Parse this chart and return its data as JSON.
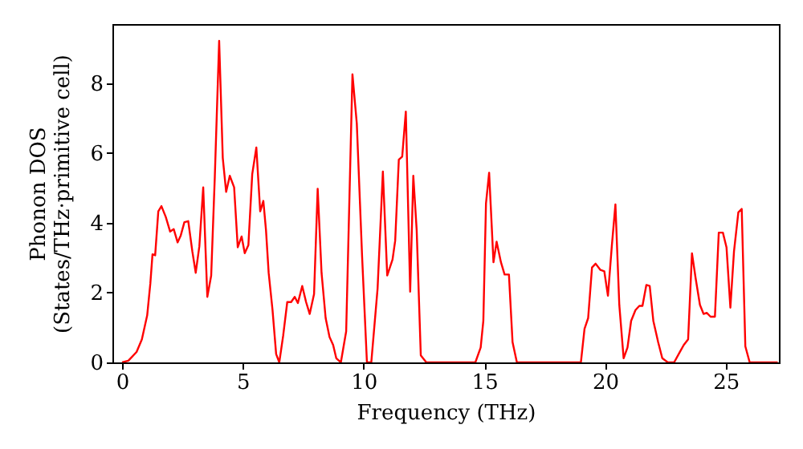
{
  "chart_data": {
    "type": "line",
    "xlabel": "Frequency (THz)",
    "ylabel": "Phonon DOS\n(States/THz·primitive cell)",
    "x": [
      0,
      0.26,
      0.6,
      0.82,
      1.04,
      1.17,
      1.26,
      1.37,
      1.5,
      1.63,
      1.81,
      1.99,
      2.14,
      2.3,
      2.43,
      2.58,
      2.74,
      2.91,
      3.05,
      3.2,
      3.36,
      3.53,
      3.69,
      3.84,
      4.02,
      4.17,
      4.31,
      4.46,
      4.64,
      4.79,
      4.95,
      5.08,
      5.23,
      5.39,
      5.56,
      5.72,
      5.85,
      5.96,
      6.07,
      6.23,
      6.38,
      6.51,
      6.67,
      6.84,
      7.0,
      7.15,
      7.28,
      7.46,
      7.62,
      7.77,
      7.95,
      8.1,
      8.26,
      8.43,
      8.59,
      8.74,
      8.87,
      9.06,
      9.28,
      9.54,
      9.72,
      9.94,
      10.14,
      10.32,
      10.58,
      10.8,
      10.98,
      11.2,
      11.31,
      11.46,
      11.6,
      11.75,
      11.93,
      12.06,
      12.2,
      12.37,
      12.6,
      14.63,
      14.85,
      14.96,
      15.07,
      15.2,
      15.38,
      15.51,
      15.69,
      15.84,
      16.02,
      16.17,
      16.35,
      19.0,
      19.15,
      19.3,
      19.46,
      19.61,
      19.81,
      19.97,
      20.12,
      20.28,
      20.43,
      20.59,
      20.77,
      20.93,
      21.08,
      21.26,
      21.42,
      21.55,
      21.71,
      21.85,
      22.0,
      22.2,
      22.37,
      22.6,
      22.86,
      23.1,
      23.26,
      23.44,
      23.6,
      23.75,
      23.93,
      24.08,
      24.21,
      24.37,
      24.55,
      24.71,
      24.88,
      25.03,
      25.19,
      25.34,
      25.52,
      25.66,
      25.81,
      25.99,
      27.15
    ],
    "series": [
      {
        "color": "#ff0000",
        "values": [
          0,
          0.05,
          0.3,
          0.66,
          1.35,
          2.26,
          3.1,
          3.07,
          4.33,
          4.48,
          4.17,
          3.75,
          3.82,
          3.44,
          3.64,
          4.02,
          4.05,
          3.18,
          2.57,
          3.33,
          5.02,
          1.88,
          2.49,
          5.32,
          9.22,
          5.86,
          4.89,
          5.35,
          5.02,
          3.3,
          3.61,
          3.13,
          3.36,
          5.4,
          6.16,
          4.33,
          4.63,
          3.79,
          2.57,
          1.5,
          0.24,
          0,
          0.76,
          1.73,
          1.73,
          1.88,
          1.7,
          2.19,
          1.73,
          1.39,
          1.96,
          4.98,
          2.57,
          1.27,
          0.73,
          0.5,
          0.12,
          0,
          0.89,
          8.26,
          6.85,
          3.03,
          0,
          0,
          2.11,
          5.47,
          2.49,
          2.95,
          3.49,
          5.81,
          5.9,
          7.19,
          2.03,
          5.35,
          3.79,
          0.2,
          0,
          0,
          0.43,
          1.19,
          4.56,
          5.44,
          2.87,
          3.46,
          2.87,
          2.52,
          2.52,
          0.58,
          0,
          0,
          0.96,
          1.27,
          2.72,
          2.83,
          2.65,
          2.61,
          1.91,
          3.33,
          4.53,
          1.65,
          0.12,
          0.43,
          1.19,
          1.5,
          1.62,
          1.62,
          2.22,
          2.19,
          1.19,
          0.58,
          0.12,
          0,
          0,
          0.3,
          0.5,
          0.66,
          3.13,
          2.42,
          1.65,
          1.39,
          1.42,
          1.31,
          1.31,
          3.72,
          3.72,
          3.3,
          1.57,
          3.18,
          4.3,
          4.4,
          0.46,
          0,
          0
        ]
      }
    ],
    "xlim": [
      -0.4,
      27.2
    ],
    "ylim": [
      0,
      9.7
    ],
    "xticks": [
      0,
      5,
      10,
      15,
      20,
      25
    ],
    "yticks": [
      0,
      2,
      4,
      6,
      8
    ],
    "grid": false,
    "line_style": "solid",
    "marker": "none"
  }
}
